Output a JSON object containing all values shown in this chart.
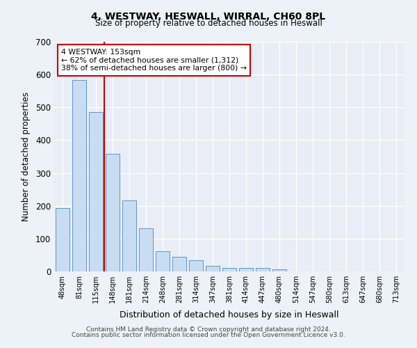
{
  "title1": "4, WESTWAY, HESWALL, WIRRAL, CH60 8PL",
  "title2": "Size of property relative to detached houses in Heswall",
  "xlabel": "Distribution of detached houses by size in Heswall",
  "ylabel": "Number of detached properties",
  "categories": [
    "48sqm",
    "81sqm",
    "115sqm",
    "148sqm",
    "181sqm",
    "214sqm",
    "248sqm",
    "281sqm",
    "314sqm",
    "347sqm",
    "381sqm",
    "414sqm",
    "447sqm",
    "480sqm",
    "514sqm",
    "547sqm",
    "580sqm",
    "613sqm",
    "647sqm",
    "680sqm",
    "713sqm"
  ],
  "values": [
    193,
    583,
    485,
    358,
    216,
    131,
    62,
    44,
    33,
    16,
    10,
    11,
    11,
    6,
    0,
    0,
    0,
    0,
    0,
    0,
    0
  ],
  "bar_color": "#c9ddf2",
  "bar_edge_color": "#5a96c8",
  "vline_color": "#cc0000",
  "annotation_text": "4 WESTWAY: 153sqm\n← 62% of detached houses are smaller (1,312)\n38% of semi-detached houses are larger (800) →",
  "annotation_box_color": "#ffffff",
  "annotation_box_edge_color": "#cc0000",
  "ylim": [
    0,
    700
  ],
  "yticks": [
    0,
    100,
    200,
    300,
    400,
    500,
    600,
    700
  ],
  "background_color": "#e8edf6",
  "fig_background_color": "#edf1f8",
  "footnote1": "Contains HM Land Registry data © Crown copyright and database right 2024.",
  "footnote2": "Contains public sector information licensed under the Open Government Licence v3.0."
}
